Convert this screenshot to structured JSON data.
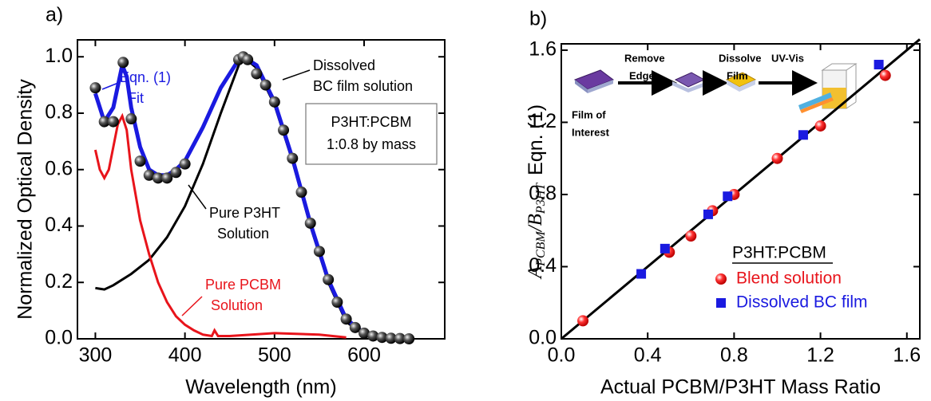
{
  "chart_data": [
    {
      "type": "line",
      "panel_label": "a)",
      "x_label": "Wavelength (nm)",
      "y_label": "Normalized Optical Density",
      "xlim": [
        280,
        690
      ],
      "ylim": [
        0,
        1.06
      ],
      "xticks": [
        300,
        400,
        500,
        600
      ],
      "yticks": [
        {
          "value": 0,
          "label": "0.0"
        },
        0.2,
        0.4,
        0.6,
        0.8,
        {
          "value": 1,
          "label": "1.0"
        }
      ],
      "box_text": [
        "P3HT:PCBM",
        "1:0.8 by mass"
      ],
      "series": [
        {
          "label": [
            "Pure P3HT",
            "Solution"
          ],
          "color": "#000000",
          "style": "line",
          "x": [
            300,
            310,
            320,
            340,
            360,
            380,
            400,
            420,
            440,
            460,
            465,
            480,
            500,
            520,
            540,
            560,
            580,
            600,
            620,
            650
          ],
          "values": [
            0.18,
            0.175,
            0.19,
            0.23,
            0.28,
            0.36,
            0.47,
            0.62,
            0.8,
            0.97,
            1.0,
            0.96,
            0.83,
            0.63,
            0.4,
            0.2,
            0.06,
            0.015,
            0.005,
            0
          ]
        },
        {
          "label": [
            "Pure PCBM",
            "Solution"
          ],
          "color": "#e8141b",
          "style": "line",
          "x": [
            300,
            305,
            310,
            315,
            320,
            325,
            330,
            335,
            340,
            350,
            360,
            370,
            380,
            390,
            400,
            410,
            420,
            430,
            433,
            437,
            450,
            500,
            550,
            580
          ],
          "values": [
            0.67,
            0.6,
            0.57,
            0.6,
            0.68,
            0.76,
            0.79,
            0.74,
            0.6,
            0.42,
            0.3,
            0.2,
            0.13,
            0.08,
            0.05,
            0.03,
            0.015,
            0.01,
            0.03,
            0.01,
            0.01,
            0.02,
            0.015,
            0.005
          ]
        },
        {
          "label": [
            "Eqn. (1)",
            "Fit"
          ],
          "color": "#1a1ae0",
          "style": "line",
          "x": [
            300,
            310,
            320,
            330,
            335,
            340,
            350,
            360,
            370,
            380,
            390,
            400,
            420,
            440,
            460,
            465,
            480,
            500,
            520,
            540,
            560,
            580,
            600,
            620,
            650
          ],
          "values": [
            0.87,
            0.77,
            0.82,
            0.97,
            0.93,
            0.82,
            0.68,
            0.6,
            0.58,
            0.58,
            0.6,
            0.63,
            0.75,
            0.89,
            0.99,
            1.0,
            0.97,
            0.84,
            0.64,
            0.41,
            0.21,
            0.07,
            0.02,
            0.005,
            0
          ]
        },
        {
          "label": [
            "Dissolved",
            "BC film solution"
          ],
          "color": "#111111",
          "style": "markers",
          "x": [
            300,
            310,
            320,
            331,
            340,
            350,
            360,
            370,
            380,
            390,
            400,
            460,
            465,
            470,
            480,
            490,
            500,
            510,
            520,
            530,
            540,
            550,
            560,
            570,
            580,
            590,
            600,
            610,
            620,
            630,
            640,
            650
          ],
          "values": [
            0.89,
            0.77,
            0.77,
            0.98,
            0.78,
            0.63,
            0.58,
            0.57,
            0.57,
            0.59,
            0.62,
            0.99,
            1.0,
            0.99,
            0.94,
            0.9,
            0.84,
            0.74,
            0.64,
            0.52,
            0.41,
            0.31,
            0.21,
            0.13,
            0.07,
            0.04,
            0.02,
            0.01,
            0.005,
            0.002,
            0.001,
            0
          ]
        }
      ]
    },
    {
      "type": "scatter",
      "panel_label": "b)",
      "x_label": "Actual PCBM/P3HT Mass Ratio",
      "y_label": [
        "A",
        "PCBM",
        "/B",
        "P3HT",
        "Eqn. (1)"
      ],
      "xlim": [
        0,
        1.66
      ],
      "ylim": [
        0,
        1.635
      ],
      "xticks": [
        {
          "value": 0,
          "label": "0.0"
        },
        0.4,
        0.8,
        1.2,
        1.6
      ],
      "yticks": [
        {
          "value": 0,
          "label": "0.0"
        },
        0.4,
        0.8,
        1.2,
        1.6
      ],
      "legend_title": "P3HT:PCBM",
      "inset": {
        "steps": [
          [
            "Film of",
            "Interest"
          ],
          [
            "Remove",
            "Edges"
          ],
          [
            "Dissolve",
            "Film"
          ],
          [
            "UV-Vis"
          ]
        ]
      },
      "series": [
        {
          "color": "#000000",
          "style": "line",
          "x": [
            0,
            1.66
          ],
          "values": [
            0,
            1.66
          ]
        },
        {
          "name": "Blend solution",
          "color": "#e8141b",
          "style": "circle",
          "x": [
            0.1,
            0.5,
            0.6,
            0.7,
            0.8,
            1.0,
            1.2,
            1.5
          ],
          "values": [
            0.1,
            0.48,
            0.57,
            0.71,
            0.8,
            1.0,
            1.18,
            1.46
          ]
        },
        {
          "name": "Dissolved BC film",
          "color": "#1a1ae0",
          "style": "square",
          "x": [
            0.37,
            0.48,
            0.68,
            0.77,
            1.12,
            1.47
          ],
          "values": [
            0.36,
            0.5,
            0.69,
            0.79,
            1.13,
            1.52
          ]
        }
      ]
    }
  ]
}
